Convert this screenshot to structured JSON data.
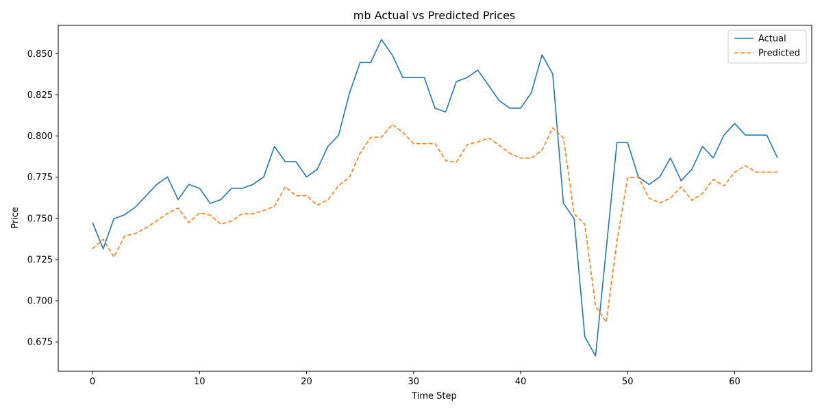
{
  "chart_data": {
    "type": "line",
    "title": "mb Actual vs Predicted Prices",
    "xlabel": "Time Step",
    "ylabel": "Price",
    "xlim": [
      -3.2,
      67.2
    ],
    "ylim": [
      0.6572,
      0.8672
    ],
    "xticks": [
      0,
      10,
      20,
      30,
      40,
      50,
      60
    ],
    "yticks": [
      0.675,
      0.7,
      0.725,
      0.75,
      0.775,
      0.8,
      0.825,
      0.85
    ],
    "xtick_labels": [
      "0",
      "10",
      "20",
      "30",
      "40",
      "50",
      "60"
    ],
    "ytick_labels": [
      "0.675",
      "0.700",
      "0.725",
      "0.750",
      "0.775",
      "0.800",
      "0.825",
      "0.850"
    ],
    "grid": false,
    "legend_position": "top-right",
    "series": [
      {
        "name": "Actual",
        "color": "#1f77b4",
        "style": "solid",
        "x": [
          0,
          1,
          2,
          3,
          4,
          5,
          6,
          7,
          8,
          9,
          10,
          11,
          12,
          13,
          14,
          15,
          16,
          17,
          18,
          19,
          20,
          21,
          22,
          23,
          24,
          25,
          26,
          27,
          28,
          29,
          30,
          31,
          32,
          33,
          34,
          35,
          36,
          37,
          38,
          39,
          40,
          41,
          42,
          43,
          44,
          45,
          46,
          47,
          48,
          49,
          50,
          51,
          52,
          53,
          54,
          55,
          56,
          57,
          58,
          59,
          60,
          61,
          62,
          63,
          64
        ],
        "values": [
          0.7475,
          0.7315,
          0.7498,
          0.7522,
          0.7568,
          0.7637,
          0.7706,
          0.7752,
          0.7614,
          0.7706,
          0.7683,
          0.7591,
          0.7614,
          0.7683,
          0.7683,
          0.7706,
          0.7752,
          0.7937,
          0.7845,
          0.7845,
          0.7752,
          0.7798,
          0.7937,
          0.8006,
          0.8258,
          0.8446,
          0.8446,
          0.8586,
          0.8493,
          0.8355,
          0.8355,
          0.8355,
          0.8169,
          0.8146,
          0.8331,
          0.8355,
          0.84,
          0.8308,
          0.8215,
          0.8169,
          0.8169,
          0.8262,
          0.8493,
          0.8377,
          0.7591,
          0.7498,
          0.6781,
          0.6665,
          0.7314,
          0.796,
          0.796,
          0.7752,
          0.7706,
          0.7752,
          0.7867,
          0.7729,
          0.7798,
          0.7937,
          0.7867,
          0.8006,
          0.8076,
          0.8006,
          0.8006,
          0.8006,
          0.7867
        ]
      },
      {
        "name": "Predicted",
        "color": "#ff7f0e",
        "style": "dashed",
        "x": [
          0,
          1,
          2,
          3,
          4,
          5,
          6,
          7,
          8,
          9,
          10,
          11,
          12,
          13,
          14,
          15,
          16,
          17,
          18,
          19,
          20,
          21,
          22,
          23,
          24,
          25,
          26,
          27,
          28,
          29,
          30,
          31,
          32,
          33,
          34,
          35,
          36,
          37,
          38,
          39,
          40,
          41,
          42,
          43,
          44,
          45,
          46,
          47,
          48,
          49,
          50,
          51,
          52,
          53,
          54,
          55,
          56,
          57,
          58,
          59,
          60,
          61,
          62,
          63,
          64
        ],
        "values": [
          0.7315,
          0.7374,
          0.7266,
          0.7393,
          0.7408,
          0.7442,
          0.7486,
          0.753,
          0.7563,
          0.7474,
          0.7534,
          0.7519,
          0.7465,
          0.7484,
          0.7528,
          0.7528,
          0.7548,
          0.7573,
          0.7692,
          0.7638,
          0.7638,
          0.758,
          0.7613,
          0.77,
          0.7749,
          0.7894,
          0.7993,
          0.7993,
          0.8071,
          0.8022,
          0.7954,
          0.7954,
          0.7954,
          0.7851,
          0.7841,
          0.7948,
          0.7964,
          0.7988,
          0.7944,
          0.7895,
          0.7866,
          0.7866,
          0.7915,
          0.805,
          0.7988,
          0.7528,
          0.7464,
          0.6968,
          0.687,
          0.7362,
          0.7747,
          0.7751,
          0.7623,
          0.7594,
          0.7623,
          0.7692,
          0.7609,
          0.7652,
          0.7737,
          0.7697,
          0.7781,
          0.782,
          0.7781,
          0.7781,
          0.7781
        ]
      }
    ]
  }
}
